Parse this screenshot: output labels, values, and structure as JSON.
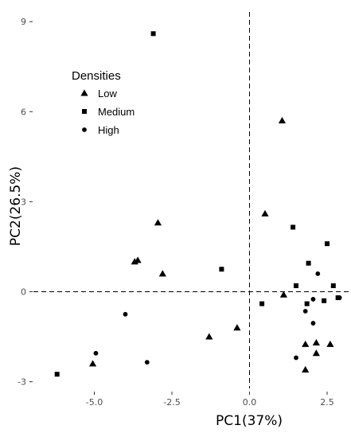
{
  "chart_data": {
    "type": "scatter",
    "xlabel": "PC1(37%)",
    "ylabel": "PC2(26.5%)",
    "xlim": [
      -6.5,
      3.2
    ],
    "ylim": [
      -3.35,
      9.35
    ],
    "x_ticks": [
      -5.0,
      -2.5,
      0.0,
      2.5
    ],
    "x_tick_labels": [
      "-5.0",
      "-2.5",
      "0.0",
      "2.5"
    ],
    "y_ticks": [
      -3,
      0,
      3,
      6,
      9
    ],
    "y_tick_labels": [
      "-3",
      "0",
      "3",
      "6",
      "9"
    ],
    "reference_lines": {
      "x": 0,
      "y": 0,
      "style": "dashed"
    },
    "grid": false,
    "legend": {
      "title": "Densities",
      "position": "top-left"
    },
    "series": [
      {
        "name": "Low",
        "marker": "triangle",
        "points": [
          [
            1.05,
            5.7
          ],
          [
            0.5,
            2.6
          ],
          [
            -2.95,
            2.3
          ],
          [
            -3.6,
            1.05
          ],
          [
            -3.7,
            1.0
          ],
          [
            -2.8,
            0.6
          ],
          [
            1.1,
            -0.1
          ],
          [
            -0.4,
            -1.2
          ],
          [
            -1.3,
            -1.5
          ],
          [
            1.8,
            -1.75
          ],
          [
            2.15,
            -1.7
          ],
          [
            2.6,
            -1.75
          ],
          [
            2.15,
            -2.05
          ],
          [
            -5.05,
            -2.4
          ],
          [
            1.8,
            -2.6
          ]
        ]
      },
      {
        "name": "Medium",
        "marker": "square",
        "points": [
          [
            -3.1,
            8.6
          ],
          [
            1.4,
            2.15
          ],
          [
            2.5,
            1.6
          ],
          [
            1.9,
            0.95
          ],
          [
            -0.9,
            0.75
          ],
          [
            1.5,
            0.2
          ],
          [
            2.7,
            0.2
          ],
          [
            2.85,
            -0.2
          ],
          [
            2.4,
            -0.3
          ],
          [
            0.4,
            -0.4
          ],
          [
            1.85,
            -0.4
          ],
          [
            -6.2,
            -2.75
          ]
        ]
      },
      {
        "name": "High",
        "marker": "circle",
        "points": [
          [
            2.2,
            0.6
          ],
          [
            2.05,
            -0.25
          ],
          [
            2.9,
            -0.2
          ],
          [
            1.8,
            -0.65
          ],
          [
            -4.0,
            -0.75
          ],
          [
            2.05,
            -1.05
          ],
          [
            -4.95,
            -2.05
          ],
          [
            1.5,
            -2.2
          ],
          [
            -3.3,
            -2.35
          ]
        ]
      }
    ]
  }
}
